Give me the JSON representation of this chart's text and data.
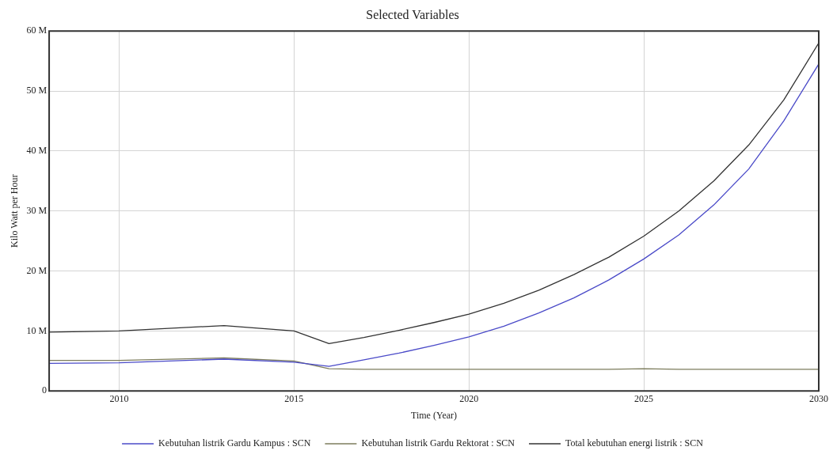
{
  "chart_data": {
    "type": "line",
    "title": "Selected Variables",
    "xlabel": "Time (Year)",
    "ylabel": "Kilo Watt per Hour",
    "x": [
      2008,
      2010,
      2013,
      2015,
      2016,
      2017,
      2018,
      2019,
      2020,
      2021,
      2022,
      2023,
      2024,
      2025,
      2026,
      2027,
      2028,
      2029,
      2030
    ],
    "series": [
      {
        "name": "Kebutuhan listrik Gardu Kampus : SCN",
        "color": "#4a4ac8",
        "values": [
          4.6,
          4.7,
          5.3,
          4.8,
          4.1,
          5.2,
          6.3,
          7.6,
          9.0,
          10.8,
          13,
          15.5,
          18.5,
          22,
          26,
          31,
          37,
          45,
          54.5
        ]
      },
      {
        "name": "Kebutuhan listrik Gardu Rektorat : SCN",
        "color": "#7c7c5c",
        "values": [
          5.1,
          5.1,
          5.5,
          5.0,
          3.7,
          3.6,
          3.6,
          3.6,
          3.6,
          3.6,
          3.6,
          3.6,
          3.6,
          3.7,
          3.6,
          3.6,
          3.6,
          3.6,
          3.6
        ]
      },
      {
        "name": "Total kebutuhan energi listrik : SCN",
        "color": "#333333",
        "values": [
          9.8,
          10,
          10.9,
          10,
          7.9,
          8.9,
          10.1,
          11.4,
          12.8,
          14.6,
          16.8,
          19.4,
          22.3,
          25.8,
          30,
          35,
          41,
          48.5,
          58
        ]
      }
    ],
    "xlim": [
      2008,
      2030
    ],
    "xticks": [
      2010,
      2015,
      2020,
      2025,
      2030
    ],
    "ylim": [
      0,
      60
    ],
    "yticks": [
      0,
      {
        "value": 10,
        "label": "10 M"
      },
      {
        "value": 20,
        "label": "20 M"
      },
      {
        "value": 30,
        "label": "30 M"
      },
      {
        "value": 40,
        "label": "40 M"
      },
      {
        "value": 50,
        "label": "50 M"
      },
      {
        "value": 60,
        "label": "60 M"
      }
    ],
    "grid": true,
    "legend": "bottom",
    "marker": "none",
    "line_style": "solid"
  }
}
